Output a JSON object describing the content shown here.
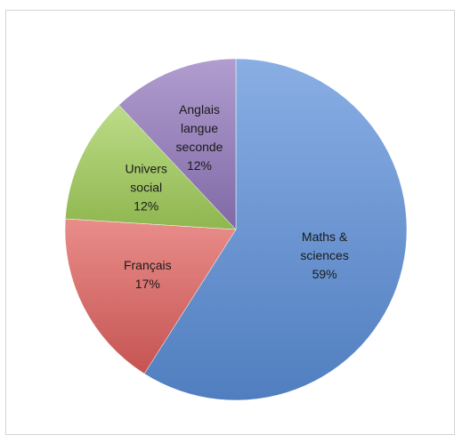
{
  "chart_data": {
    "type": "pie",
    "start_angle_deg": 0,
    "direction": "clockwise",
    "slices": [
      {
        "label_lines": [
          "Maths &",
          "sciences"
        ],
        "value": 59,
        "value_text": "59%",
        "color": "#5b8fd9"
      },
      {
        "label_lines": [
          "Français"
        ],
        "value": 17,
        "value_text": "17%",
        "color": "#e0605d"
      },
      {
        "label_lines": [
          "Univers",
          "social"
        ],
        "value": 12,
        "value_text": "12%",
        "color": "#a3cf5a"
      },
      {
        "label_lines": [
          "Anglais",
          "langue",
          "seconde"
        ],
        "value": 12,
        "value_text": "12%",
        "color": "#9277bd"
      }
    ],
    "legend": "none",
    "grid": false
  }
}
